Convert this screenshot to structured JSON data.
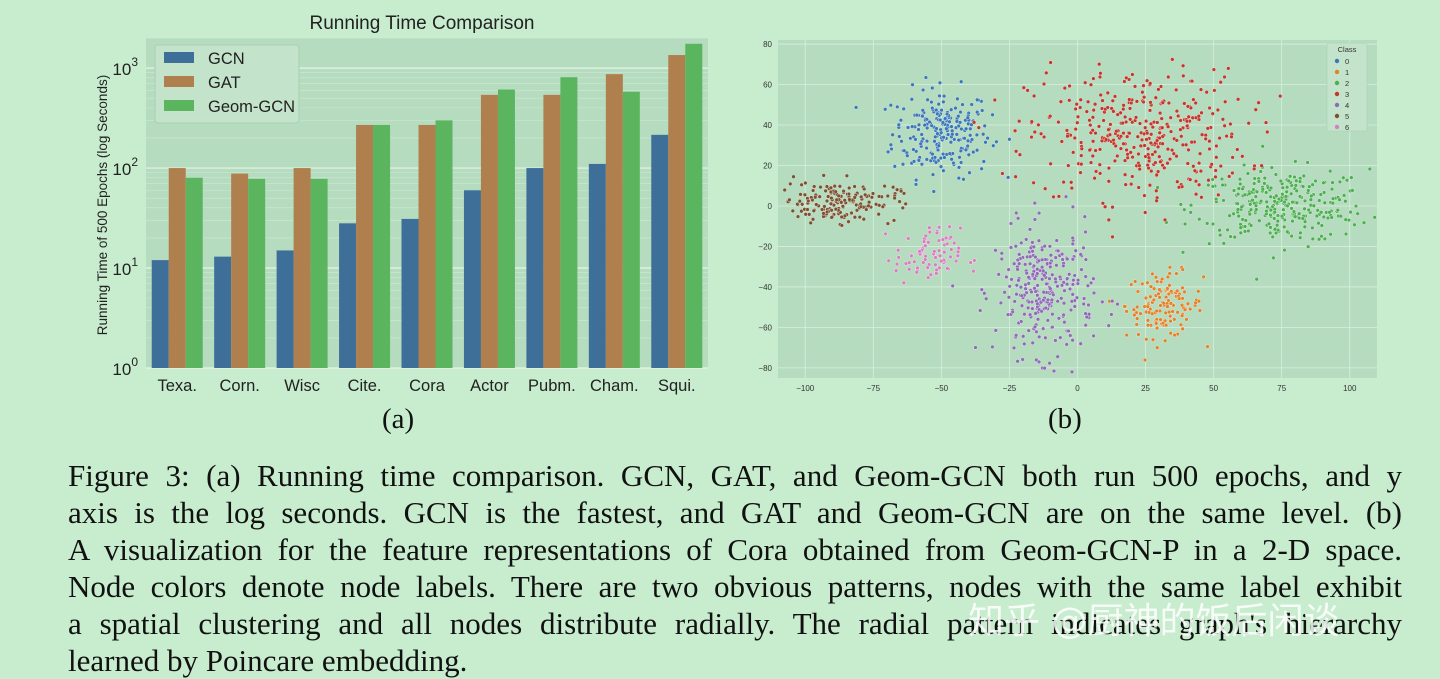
{
  "chart_data": [
    {
      "type": "bar",
      "title": "Running Time Comparison",
      "xlabel": "",
      "ylabel": "Running Time of 500 Epochs (log Seconds)",
      "yscale": "log",
      "ylim": [
        1,
        2000
      ],
      "yticks": [
        {
          "base": "10",
          "exp": "0",
          "value": 1
        },
        {
          "base": "10",
          "exp": "1",
          "value": 10
        },
        {
          "base": "10",
          "exp": "2",
          "value": 100
        },
        {
          "base": "10",
          "exp": "3",
          "value": 1000
        }
      ],
      "grid": true,
      "legend_position": "top-left",
      "categories": [
        "Texa.",
        "Corn.",
        "Wisc",
        "Cite.",
        "Cora",
        "Actor",
        "Pubm.",
        "Cham.",
        "Squi."
      ],
      "series": [
        {
          "name": "GCN",
          "color": "#3e6f99",
          "values": [
            12,
            13,
            15,
            28,
            31,
            60,
            100,
            110,
            215
          ]
        },
        {
          "name": "GAT",
          "color": "#b07f4e",
          "values": [
            100,
            88,
            100,
            270,
            270,
            540,
            540,
            870,
            1350
          ]
        },
        {
          "name": "Geom-GCN",
          "color": "#5bb55e",
          "values": [
            80,
            78,
            78,
            270,
            300,
            610,
            810,
            580,
            1750
          ]
        }
      ]
    },
    {
      "type": "scatter",
      "title": "",
      "xlabel": "",
      "ylabel": "",
      "xlim": [
        -110,
        110
      ],
      "ylim": [
        -85,
        82
      ],
      "xticks": [
        "−100",
        "−75",
        "−50",
        "−25",
        "0",
        "25",
        "50",
        "75",
        "100"
      ],
      "xtick_values": [
        -100,
        -75,
        -50,
        -25,
        0,
        25,
        50,
        75,
        100
      ],
      "yticks": [
        "80",
        "60",
        "40",
        "20",
        "0",
        "−20",
        "−40",
        "−60",
        "−80"
      ],
      "ytick_values": [
        80,
        60,
        40,
        20,
        0,
        -20,
        -40,
        -60,
        -80
      ],
      "grid": true,
      "legend_title": "Class",
      "legend_position": "top-right",
      "series": [
        {
          "name": "0",
          "color": "#3a78b5",
          "center": [
            -50,
            36
          ],
          "spread": [
            9,
            11
          ],
          "count": 230
        },
        {
          "name": "1",
          "color": "#e0832a",
          "center": [
            32,
            -49
          ],
          "spread": [
            7,
            8
          ],
          "count": 130
        },
        {
          "name": "2",
          "color": "#4caf50",
          "center": [
            75,
            0
          ],
          "spread": [
            16,
            9
          ],
          "count": 300
        },
        {
          "name": "3",
          "color": "#c0392b",
          "center": [
            22,
            35
          ],
          "spread": [
            20,
            16
          ],
          "count": 380
        },
        {
          "name": "4",
          "color": "#8e6cb5",
          "center": [
            -12,
            -42
          ],
          "spread": [
            9,
            16
          ],
          "count": 290
        },
        {
          "name": "5",
          "color": "#7a5230",
          "center": [
            -88,
            2
          ],
          "spread": [
            11,
            5
          ],
          "count": 170
        },
        {
          "name": "6",
          "color": "#d67fc0",
          "center": [
            -55,
            -25
          ],
          "spread": [
            6,
            7
          ],
          "count": 80
        }
      ]
    }
  ],
  "labels": {
    "a": "(a)",
    "b": "(b)"
  },
  "caption": {
    "lines": [
      "Figure 3: (a) Running time comparison. GCN, GAT, and Geom-GCN both run 500 epochs, and y",
      "axis is the log seconds. GCN is the fastest, and GAT and Geom-GCN are on the same level. (b)",
      "A visualization for the feature representations of Cora obtained from Geom-GCN-P in a 2-D space.",
      "Node colors denote node labels. There are two obvious patterns, nodes with the same label exhibit",
      "a spatial clustering and all nodes distribute radially. The radial pattern indicates graph's hierarchy",
      "learned by Poincare embedding."
    ]
  },
  "watermark": "知乎 @厨神的饭后闲谈"
}
